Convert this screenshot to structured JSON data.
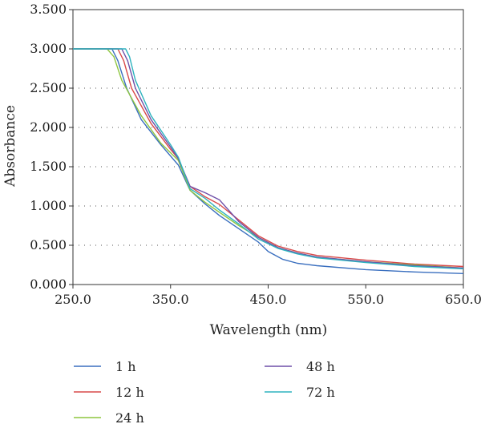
{
  "chart_data": {
    "type": "line",
    "title": "",
    "xlabel": "Wavelength (nm)",
    "ylabel": "Absorbance",
    "xlim": [
      250,
      650
    ],
    "ylim": [
      0,
      3.5
    ],
    "xticks": [
      250,
      350,
      450,
      550,
      650
    ],
    "xtick_labels": [
      "250.0",
      "350.0",
      "450.0",
      "550.0",
      "650.0"
    ],
    "yticks": [
      0,
      0.5,
      1,
      1.5,
      2,
      2.5,
      3,
      3.5
    ],
    "ytick_labels": [
      "0.000",
      "0.500",
      "1.000",
      "1.500",
      "2.000",
      "2.500",
      "3.000",
      "3.500"
    ],
    "grid": "horizontal dotted",
    "legend_position": "bottom",
    "series": [
      {
        "name": "1 h",
        "color": "#3a6fbf",
        "points": [
          [
            250,
            3.0
          ],
          [
            290,
            3.0
          ],
          [
            296,
            2.85
          ],
          [
            305,
            2.5
          ],
          [
            320,
            2.1
          ],
          [
            340,
            1.78
          ],
          [
            358,
            1.52
          ],
          [
            370,
            1.2
          ],
          [
            385,
            1.03
          ],
          [
            400,
            0.88
          ],
          [
            420,
            0.71
          ],
          [
            440,
            0.54
          ],
          [
            450,
            0.42
          ],
          [
            465,
            0.32
          ],
          [
            480,
            0.27
          ],
          [
            500,
            0.24
          ],
          [
            550,
            0.19
          ],
          [
            600,
            0.16
          ],
          [
            650,
            0.14
          ]
        ]
      },
      {
        "name": "12 h",
        "color": "#d94a4a",
        "points": [
          [
            250,
            3.0
          ],
          [
            296,
            3.0
          ],
          [
            302,
            2.85
          ],
          [
            310,
            2.5
          ],
          [
            330,
            2.05
          ],
          [
            350,
            1.72
          ],
          [
            358,
            1.6
          ],
          [
            370,
            1.25
          ],
          [
            385,
            1.12
          ],
          [
            400,
            1.02
          ],
          [
            420,
            0.82
          ],
          [
            440,
            0.62
          ],
          [
            460,
            0.49
          ],
          [
            480,
            0.42
          ],
          [
            500,
            0.37
          ],
          [
            550,
            0.31
          ],
          [
            600,
            0.26
          ],
          [
            650,
            0.23
          ]
        ]
      },
      {
        "name": "24 h",
        "color": "#8ec63f",
        "points": [
          [
            250,
            3.0
          ],
          [
            285,
            3.0
          ],
          [
            292,
            2.9
          ],
          [
            300,
            2.6
          ],
          [
            320,
            2.15
          ],
          [
            340,
            1.8
          ],
          [
            358,
            1.58
          ],
          [
            370,
            1.2
          ],
          [
            385,
            1.05
          ],
          [
            400,
            0.92
          ],
          [
            420,
            0.75
          ],
          [
            440,
            0.6
          ],
          [
            460,
            0.47
          ],
          [
            480,
            0.4
          ],
          [
            500,
            0.35
          ],
          [
            550,
            0.29
          ],
          [
            600,
            0.25
          ],
          [
            650,
            0.21
          ]
        ]
      },
      {
        "name": "48 h",
        "color": "#6f4fa8",
        "points": [
          [
            250,
            3.0
          ],
          [
            300,
            3.0
          ],
          [
            306,
            2.85
          ],
          [
            314,
            2.5
          ],
          [
            330,
            2.1
          ],
          [
            350,
            1.75
          ],
          [
            358,
            1.6
          ],
          [
            370,
            1.25
          ],
          [
            385,
            1.17
          ],
          [
            400,
            1.08
          ],
          [
            420,
            0.8
          ],
          [
            440,
            0.6
          ],
          [
            460,
            0.47
          ],
          [
            480,
            0.4
          ],
          [
            500,
            0.35
          ],
          [
            550,
            0.29
          ],
          [
            600,
            0.24
          ],
          [
            650,
            0.21
          ]
        ]
      },
      {
        "name": "72 h",
        "color": "#2fb3bf",
        "points": [
          [
            250,
            3.0
          ],
          [
            304,
            3.0
          ],
          [
            308,
            2.9
          ],
          [
            314,
            2.6
          ],
          [
            330,
            2.15
          ],
          [
            350,
            1.78
          ],
          [
            358,
            1.62
          ],
          [
            370,
            1.22
          ],
          [
            385,
            1.1
          ],
          [
            400,
            0.95
          ],
          [
            420,
            0.77
          ],
          [
            440,
            0.58
          ],
          [
            460,
            0.46
          ],
          [
            480,
            0.39
          ],
          [
            500,
            0.34
          ],
          [
            550,
            0.28
          ],
          [
            600,
            0.23
          ],
          [
            650,
            0.2
          ]
        ]
      }
    ]
  }
}
